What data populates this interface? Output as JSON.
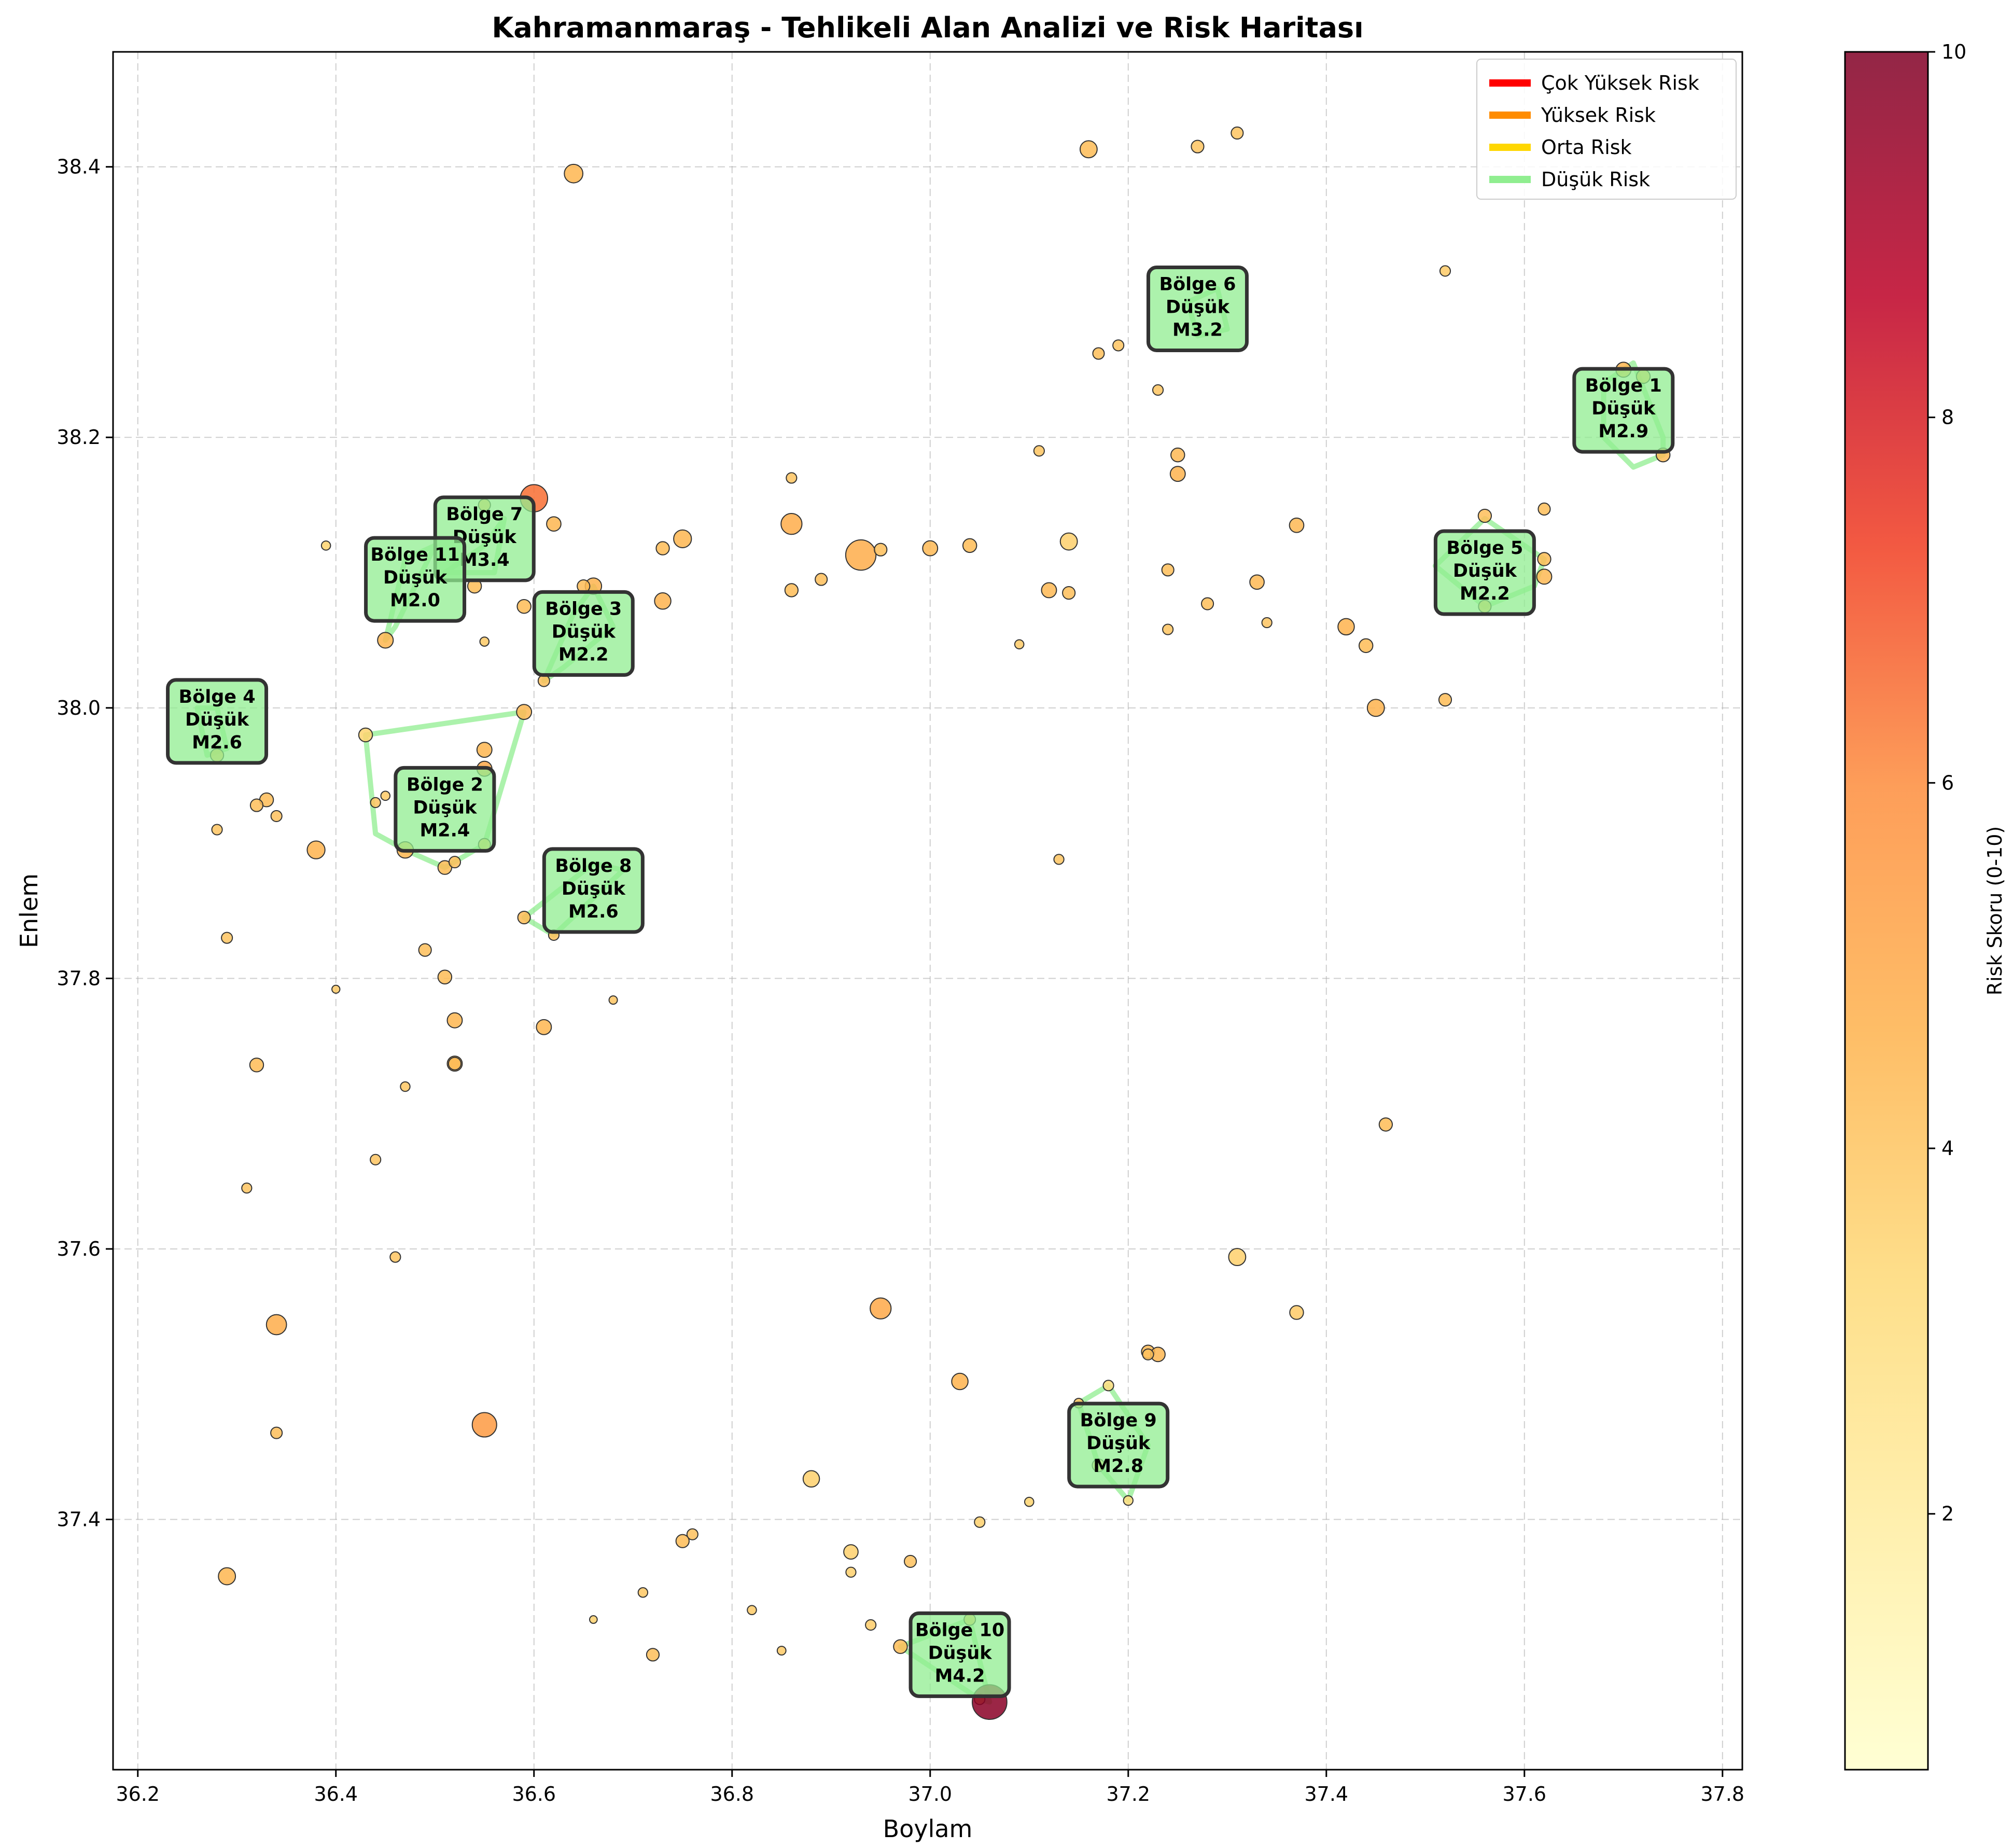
{
  "chart_data": {
    "type": "scatter",
    "title": "Kahramanmaraş - Tehlikeli Alan Analizi ve Risk Haritası",
    "xlabel": "Boylam",
    "ylabel": "Enlem",
    "xlim": [
      36.175,
      37.82
    ],
    "ylim": [
      37.215,
      38.485
    ],
    "xticks": [
      "36.2",
      "36.4",
      "36.6",
      "36.8",
      "37.0",
      "37.2",
      "37.4",
      "37.6",
      "37.8"
    ],
    "yticks": [
      "37.4",
      "37.6",
      "37.8",
      "38.0",
      "38.2",
      "38.4"
    ],
    "grid": true,
    "legend_position": "top-right",
    "legend": [
      {
        "label": "Çok Yüksek Risk",
        "color": "#ff0000"
      },
      {
        "label": "Yüksek Risk",
        "color": "#ff8c00"
      },
      {
        "label": "Orta Risk",
        "color": "#ffd700"
      },
      {
        "label": "Düşük Risk",
        "color": "#90ee90"
      }
    ],
    "colorbar": {
      "label": "Risk Skoru (0-10)",
      "min": 0.6,
      "max": 10,
      "ticks": [
        "2",
        "4",
        "6",
        "8",
        "10"
      ],
      "colormap": [
        "#ffffcc",
        "#ffeda0",
        "#fed976",
        "#feb24c",
        "#fd8d3c",
        "#f03b20",
        "#bd0026",
        "#800026"
      ]
    },
    "points": [
      {
        "x": 36.64,
        "y": 38.395,
        "mag": 3.5,
        "risk": 4.5
      },
      {
        "x": 37.16,
        "y": 38.413,
        "mag": 3.3,
        "risk": 4.3
      },
      {
        "x": 37.27,
        "y": 38.415,
        "mag": 2.6,
        "risk": 4.0
      },
      {
        "x": 37.31,
        "y": 38.425,
        "mag": 2.5,
        "risk": 4.0
      },
      {
        "x": 37.52,
        "y": 38.323,
        "mag": 2.2,
        "risk": 3.8
      },
      {
        "x": 37.19,
        "y": 38.268,
        "mag": 2.3,
        "risk": 4.0
      },
      {
        "x": 37.17,
        "y": 38.262,
        "mag": 2.4,
        "risk": 4.2
      },
      {
        "x": 37.23,
        "y": 38.235,
        "mag": 2.2,
        "risk": 4.0
      },
      {
        "x": 37.7,
        "y": 38.25,
        "mag": 3.0,
        "risk": 4.5
      },
      {
        "x": 37.72,
        "y": 38.245,
        "mag": 2.8,
        "risk": 4.3
      },
      {
        "x": 37.11,
        "y": 38.19,
        "mag": 2.2,
        "risk": 4.0
      },
      {
        "x": 37.25,
        "y": 38.187,
        "mag": 2.8,
        "risk": 4.4
      },
      {
        "x": 37.25,
        "y": 38.173,
        "mag": 3.0,
        "risk": 4.6
      },
      {
        "x": 37.74,
        "y": 38.187,
        "mag": 2.8,
        "risk": 4.3
      },
      {
        "x": 36.86,
        "y": 38.17,
        "mag": 2.2,
        "risk": 4.0
      },
      {
        "x": 36.6,
        "y": 38.155,
        "mag": 4.5,
        "risk": 6.5
      },
      {
        "x": 36.55,
        "y": 38.15,
        "mag": 2.5,
        "risk": 4.2
      },
      {
        "x": 36.62,
        "y": 38.136,
        "mag": 2.9,
        "risk": 4.5
      },
      {
        "x": 36.86,
        "y": 38.136,
        "mag": 3.8,
        "risk": 4.8
      },
      {
        "x": 36.75,
        "y": 38.125,
        "mag": 3.4,
        "risk": 4.5
      },
      {
        "x": 36.73,
        "y": 38.118,
        "mag": 2.7,
        "risk": 4.3
      },
      {
        "x": 36.39,
        "y": 38.12,
        "mag": 1.9,
        "risk": 3.5
      },
      {
        "x": 36.93,
        "y": 38.113,
        "mag": 4.8,
        "risk": 4.8
      },
      {
        "x": 36.95,
        "y": 38.117,
        "mag": 2.6,
        "risk": 4.2
      },
      {
        "x": 37.0,
        "y": 38.118,
        "mag": 3.0,
        "risk": 4.4
      },
      {
        "x": 37.04,
        "y": 38.12,
        "mag": 2.8,
        "risk": 4.3
      },
      {
        "x": 37.14,
        "y": 38.123,
        "mag": 3.3,
        "risk": 3.6
      },
      {
        "x": 37.37,
        "y": 38.135,
        "mag": 2.9,
        "risk": 4.4
      },
      {
        "x": 37.62,
        "y": 38.147,
        "mag": 2.5,
        "risk": 4.2
      },
      {
        "x": 37.56,
        "y": 38.142,
        "mag": 2.7,
        "risk": 4.2
      },
      {
        "x": 36.89,
        "y": 38.095,
        "mag": 2.5,
        "risk": 4.2
      },
      {
        "x": 36.86,
        "y": 38.087,
        "mag": 2.7,
        "risk": 4.3
      },
      {
        "x": 36.66,
        "y": 38.09,
        "mag": 3.2,
        "risk": 4.6
      },
      {
        "x": 36.65,
        "y": 38.09,
        "mag": 2.6,
        "risk": 4.3
      },
      {
        "x": 36.54,
        "y": 38.09,
        "mag": 2.8,
        "risk": 4.3
      },
      {
        "x": 36.73,
        "y": 38.079,
        "mag": 3.2,
        "risk": 4.6
      },
      {
        "x": 36.59,
        "y": 38.075,
        "mag": 2.8,
        "risk": 4.3
      },
      {
        "x": 37.12,
        "y": 38.087,
        "mag": 3.0,
        "risk": 4.4
      },
      {
        "x": 37.14,
        "y": 38.085,
        "mag": 2.6,
        "risk": 4.2
      },
      {
        "x": 37.24,
        "y": 38.102,
        "mag": 2.5,
        "risk": 4.2
      },
      {
        "x": 37.33,
        "y": 38.093,
        "mag": 2.9,
        "risk": 4.4
      },
      {
        "x": 37.28,
        "y": 38.077,
        "mag": 2.5,
        "risk": 4.2
      },
      {
        "x": 37.34,
        "y": 38.063,
        "mag": 2.1,
        "risk": 4.0
      },
      {
        "x": 37.24,
        "y": 38.058,
        "mag": 2.2,
        "risk": 4.0
      },
      {
        "x": 37.09,
        "y": 38.047,
        "mag": 1.9,
        "risk": 3.8
      },
      {
        "x": 37.42,
        "y": 38.06,
        "mag": 3.2,
        "risk": 4.6
      },
      {
        "x": 37.44,
        "y": 38.046,
        "mag": 2.8,
        "risk": 4.3
      },
      {
        "x": 37.62,
        "y": 38.097,
        "mag": 3.0,
        "risk": 4.4
      },
      {
        "x": 37.62,
        "y": 38.11,
        "mag": 2.7,
        "risk": 4.3
      },
      {
        "x": 37.56,
        "y": 38.075,
        "mag": 2.6,
        "risk": 4.3
      },
      {
        "x": 36.55,
        "y": 38.049,
        "mag": 1.9,
        "risk": 3.8
      },
      {
        "x": 36.45,
        "y": 38.05,
        "mag": 3.1,
        "risk": 4.5
      },
      {
        "x": 36.61,
        "y": 38.02,
        "mag": 2.4,
        "risk": 4.2
      },
      {
        "x": 37.45,
        "y": 38.0,
        "mag": 3.3,
        "risk": 4.6
      },
      {
        "x": 37.52,
        "y": 38.006,
        "mag": 2.6,
        "risk": 4.3
      },
      {
        "x": 36.59,
        "y": 37.997,
        "mag": 3.0,
        "risk": 4.4
      },
      {
        "x": 36.43,
        "y": 37.98,
        "mag": 2.8,
        "risk": 3.5
      },
      {
        "x": 36.55,
        "y": 37.969,
        "mag": 3.0,
        "risk": 4.5
      },
      {
        "x": 36.28,
        "y": 37.965,
        "mag": 2.7,
        "risk": 4.3
      },
      {
        "x": 36.55,
        "y": 37.955,
        "mag": 3.0,
        "risk": 5.0
      },
      {
        "x": 36.33,
        "y": 37.932,
        "mag": 2.8,
        "risk": 4.3
      },
      {
        "x": 36.32,
        "y": 37.928,
        "mag": 2.6,
        "risk": 4.2
      },
      {
        "x": 36.34,
        "y": 37.92,
        "mag": 2.3,
        "risk": 4.1
      },
      {
        "x": 36.28,
        "y": 37.91,
        "mag": 2.2,
        "risk": 4.0
      },
      {
        "x": 36.44,
        "y": 37.93,
        "mag": 2.1,
        "risk": 4.0
      },
      {
        "x": 36.45,
        "y": 37.935,
        "mag": 1.9,
        "risk": 3.8
      },
      {
        "x": 36.38,
        "y": 37.895,
        "mag": 3.4,
        "risk": 4.6
      },
      {
        "x": 36.47,
        "y": 37.895,
        "mag": 3.2,
        "risk": 4.5
      },
      {
        "x": 36.55,
        "y": 37.899,
        "mag": 2.5,
        "risk": 4.2
      },
      {
        "x": 36.51,
        "y": 37.882,
        "mag": 2.8,
        "risk": 4.3
      },
      {
        "x": 36.52,
        "y": 37.886,
        "mag": 2.4,
        "risk": 4.2
      },
      {
        "x": 37.13,
        "y": 37.888,
        "mag": 2.1,
        "risk": 4.0
      },
      {
        "x": 36.59,
        "y": 37.845,
        "mag": 2.6,
        "risk": 4.3
      },
      {
        "x": 36.62,
        "y": 37.832,
        "mag": 2.2,
        "risk": 4.1
      },
      {
        "x": 36.29,
        "y": 37.83,
        "mag": 2.3,
        "risk": 4.0
      },
      {
        "x": 36.49,
        "y": 37.821,
        "mag": 2.6,
        "risk": 4.2
      },
      {
        "x": 36.51,
        "y": 37.801,
        "mag": 2.8,
        "risk": 4.3
      },
      {
        "x": 36.4,
        "y": 37.792,
        "mag": 1.6,
        "risk": 3.8
      },
      {
        "x": 36.68,
        "y": 37.784,
        "mag": 1.7,
        "risk": 4.0
      },
      {
        "x": 36.52,
        "y": 37.769,
        "mag": 3.0,
        "risk": 4.5
      },
      {
        "x": 36.61,
        "y": 37.764,
        "mag": 3.0,
        "risk": 4.5
      },
      {
        "x": 36.52,
        "y": 37.737,
        "mag": 3.0,
        "risk": 4.5
      },
      {
        "x": 36.52,
        "y": 37.737,
        "mag": 2.6,
        "risk": 4.3
      },
      {
        "x": 36.32,
        "y": 37.736,
        "mag": 2.8,
        "risk": 4.3
      },
      {
        "x": 36.47,
        "y": 37.72,
        "mag": 2.0,
        "risk": 3.9
      },
      {
        "x": 37.46,
        "y": 37.692,
        "mag": 2.7,
        "risk": 4.3
      },
      {
        "x": 36.44,
        "y": 37.666,
        "mag": 2.2,
        "risk": 4.0
      },
      {
        "x": 36.31,
        "y": 37.645,
        "mag": 2.1,
        "risk": 4.0
      },
      {
        "x": 36.46,
        "y": 37.594,
        "mag": 2.2,
        "risk": 4.0
      },
      {
        "x": 37.31,
        "y": 37.594,
        "mag": 3.3,
        "risk": 3.6
      },
      {
        "x": 37.37,
        "y": 37.553,
        "mag": 2.8,
        "risk": 3.8
      },
      {
        "x": 36.34,
        "y": 37.544,
        "mag": 3.7,
        "risk": 4.8
      },
      {
        "x": 36.95,
        "y": 37.556,
        "mag": 3.8,
        "risk": 5.0
      },
      {
        "x": 37.22,
        "y": 37.524,
        "mag": 2.7,
        "risk": 4.4
      },
      {
        "x": 37.23,
        "y": 37.522,
        "mag": 2.9,
        "risk": 4.5
      },
      {
        "x": 37.22,
        "y": 37.522,
        "mag": 2.3,
        "risk": 4.1
      },
      {
        "x": 37.03,
        "y": 37.502,
        "mag": 3.2,
        "risk": 4.6
      },
      {
        "x": 37.18,
        "y": 37.499,
        "mag": 2.2,
        "risk": 3.0
      },
      {
        "x": 37.15,
        "y": 37.486,
        "mag": 2.0,
        "risk": 4.0
      },
      {
        "x": 36.55,
        "y": 37.47,
        "mag": 4.2,
        "risk": 5.5
      },
      {
        "x": 36.34,
        "y": 37.464,
        "mag": 2.4,
        "risk": 4.2
      },
      {
        "x": 37.17,
        "y": 37.44,
        "mag": 2.6,
        "risk": 3.2
      },
      {
        "x": 36.88,
        "y": 37.43,
        "mag": 3.2,
        "risk": 3.6
      },
      {
        "x": 37.2,
        "y": 37.414,
        "mag": 2.0,
        "risk": 3.0
      },
      {
        "x": 37.1,
        "y": 37.413,
        "mag": 1.9,
        "risk": 3.5
      },
      {
        "x": 37.05,
        "y": 37.398,
        "mag": 2.2,
        "risk": 3.6
      },
      {
        "x": 36.76,
        "y": 37.389,
        "mag": 2.3,
        "risk": 4.1
      },
      {
        "x": 36.75,
        "y": 37.384,
        "mag": 2.7,
        "risk": 4.3
      },
      {
        "x": 36.92,
        "y": 37.376,
        "mag": 2.9,
        "risk": 3.6
      },
      {
        "x": 36.98,
        "y": 37.369,
        "mag": 2.5,
        "risk": 4.1
      },
      {
        "x": 36.92,
        "y": 37.361,
        "mag": 2.1,
        "risk": 3.6
      },
      {
        "x": 36.29,
        "y": 37.358,
        "mag": 3.3,
        "risk": 4.5
      },
      {
        "x": 36.71,
        "y": 37.346,
        "mag": 2.0,
        "risk": 3.9
      },
      {
        "x": 36.82,
        "y": 37.333,
        "mag": 1.9,
        "risk": 3.8
      },
      {
        "x": 37.04,
        "y": 37.326,
        "mag": 2.4,
        "risk": 4.2
      },
      {
        "x": 36.66,
        "y": 37.326,
        "mag": 1.5,
        "risk": 3.6
      },
      {
        "x": 36.94,
        "y": 37.322,
        "mag": 2.2,
        "risk": 3.7
      },
      {
        "x": 36.97,
        "y": 37.306,
        "mag": 2.8,
        "risk": 4.3
      },
      {
        "x": 36.85,
        "y": 37.303,
        "mag": 1.8,
        "risk": 3.8
      },
      {
        "x": 36.72,
        "y": 37.3,
        "mag": 2.6,
        "risk": 4.2
      },
      {
        "x": 37.05,
        "y": 37.267,
        "mag": 2.2,
        "risk": 4.2
      },
      {
        "x": 37.06,
        "y": 37.265,
        "mag": 5.2,
        "risk": 9.8
      }
    ],
    "zones": [
      {
        "name": "Bölge 1",
        "risk_level": "Düşük",
        "magnitude": "M2.9",
        "label_x": 37.7,
        "label_y": 38.22,
        "hull": [
          [
            37.68,
            38.24
          ],
          [
            37.71,
            38.255
          ],
          [
            37.74,
            38.2
          ],
          [
            37.74,
            38.187
          ],
          [
            37.71,
            38.178
          ],
          [
            37.68,
            38.2
          ]
        ]
      },
      {
        "name": "Bölge 2",
        "risk_level": "Düşük",
        "magnitude": "M2.4",
        "label_x": 36.51,
        "label_y": 37.925,
        "hull": [
          [
            36.43,
            37.98
          ],
          [
            36.59,
            37.997
          ],
          [
            36.55,
            37.899
          ],
          [
            36.51,
            37.882
          ],
          [
            36.47,
            37.895
          ],
          [
            36.44,
            37.907
          ]
        ]
      },
      {
        "name": "Bölge 3",
        "risk_level": "Düşük",
        "magnitude": "M2.2",
        "label_x": 36.65,
        "label_y": 38.055,
        "hull": [
          [
            36.61,
            38.02
          ],
          [
            36.64,
            38.07
          ],
          [
            36.66,
            38.09
          ],
          [
            36.68,
            38.06
          ],
          [
            36.63,
            38.03
          ]
        ]
      },
      {
        "name": "Bölge 4",
        "risk_level": "Düşük",
        "magnitude": "M2.6",
        "label_x": 36.28,
        "label_y": 37.99,
        "hull": [
          [
            36.26,
            38.0
          ],
          [
            36.28,
            38.0
          ],
          [
            36.29,
            37.97
          ],
          [
            36.27,
            37.965
          ]
        ]
      },
      {
        "name": "Bölge 5",
        "risk_level": "Düşük",
        "magnitude": "M2.2",
        "label_x": 37.56,
        "label_y": 38.1,
        "hull": [
          [
            37.51,
            38.105
          ],
          [
            37.56,
            38.14
          ],
          [
            37.62,
            38.11
          ],
          [
            37.61,
            38.09
          ],
          [
            37.56,
            38.075
          ]
        ]
      },
      {
        "name": "Bölge 6",
        "risk_level": "Düşük",
        "magnitude": "M3.2",
        "label_x": 37.27,
        "label_y": 38.295,
        "hull": [
          [
            37.26,
            38.3
          ],
          [
            37.29,
            38.31
          ],
          [
            37.3,
            38.28
          ],
          [
            37.27,
            38.275
          ]
        ]
      },
      {
        "name": "Bölge 7",
        "risk_level": "Düşük",
        "magnitude": "M3.4",
        "label_x": 36.55,
        "label_y": 38.125,
        "hull": [
          [
            36.51,
            38.1
          ],
          [
            36.55,
            38.12
          ],
          [
            36.57,
            38.14
          ],
          [
            36.56,
            38.1
          ]
        ]
      },
      {
        "name": "Bölge 8",
        "risk_level": "Düşük",
        "magnitude": "M2.6",
        "label_x": 36.66,
        "label_y": 37.865,
        "hull": [
          [
            36.59,
            37.845
          ],
          [
            36.66,
            37.885
          ],
          [
            36.69,
            37.88
          ],
          [
            36.62,
            37.832
          ]
        ]
      },
      {
        "name": "Bölge 9",
        "risk_level": "Düşük",
        "magnitude": "M2.8",
        "label_x": 37.19,
        "label_y": 37.455,
        "hull": [
          [
            37.15,
            37.486
          ],
          [
            37.18,
            37.499
          ],
          [
            37.22,
            37.455
          ],
          [
            37.2,
            37.414
          ],
          [
            37.17,
            37.44
          ]
        ]
      },
      {
        "name": "Bölge 10",
        "risk_level": "Düşük",
        "magnitude": "M4.2",
        "label_x": 37.03,
        "label_y": 37.3,
        "hull": [
          [
            36.97,
            37.306
          ],
          [
            37.04,
            37.326
          ],
          [
            37.06,
            37.265
          ],
          [
            37.05,
            37.267
          ]
        ]
      },
      {
        "name": "Bölge 11",
        "risk_level": "Düşük",
        "magnitude": "M2.0",
        "label_x": 36.48,
        "label_y": 38.095,
        "hull": [
          [
            36.45,
            38.05
          ],
          [
            36.47,
            38.11
          ],
          [
            36.5,
            38.12
          ],
          [
            36.46,
            38.06
          ]
        ]
      }
    ]
  }
}
